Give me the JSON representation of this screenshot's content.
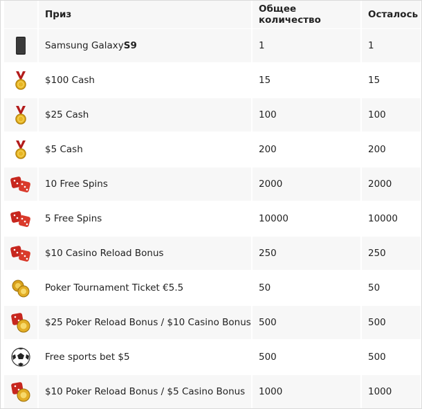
{
  "headers": {
    "icon": "",
    "prize": "Приз",
    "total": "Общее количество",
    "remaining": "Осталось"
  },
  "rows": [
    {
      "icon": "phone-icon",
      "prize": "Samsung Galaxy ",
      "prize_bold": "S9",
      "total": "1",
      "remaining": "1"
    },
    {
      "icon": "medal-icon",
      "prize": "$100 Cash",
      "total": "15",
      "remaining": "15"
    },
    {
      "icon": "medal-icon",
      "prize": "$25 Cash",
      "total": "100",
      "remaining": "100"
    },
    {
      "icon": "medal-icon",
      "prize": "$5 Cash",
      "total": "200",
      "remaining": "200"
    },
    {
      "icon": "dice-icon",
      "prize": "10 Free Spins",
      "total": "2000",
      "remaining": "2000"
    },
    {
      "icon": "dice-icon",
      "prize": "5 Free Spins",
      "total": "10000",
      "remaining": "10000"
    },
    {
      "icon": "dice-icon",
      "prize": "$10 Casino Reload Bonus",
      "total": "250",
      "remaining": "250"
    },
    {
      "icon": "chips-icon",
      "prize": "Poker Tournament Ticket €5.5",
      "total": "50",
      "remaining": "50"
    },
    {
      "icon": "dice-chip-icon",
      "prize": "$25 Poker Reload Bonus / $10 Casino Bonus",
      "total": "500",
      "remaining": "500"
    },
    {
      "icon": "soccer-ball-icon",
      "prize": "Free sports bet $5",
      "total": "500",
      "remaining": "500"
    },
    {
      "icon": "dice-chip-icon",
      "prize": "$10 Poker Reload Bonus / $5 Casino Bonus",
      "total": "1000",
      "remaining": "1000"
    }
  ]
}
